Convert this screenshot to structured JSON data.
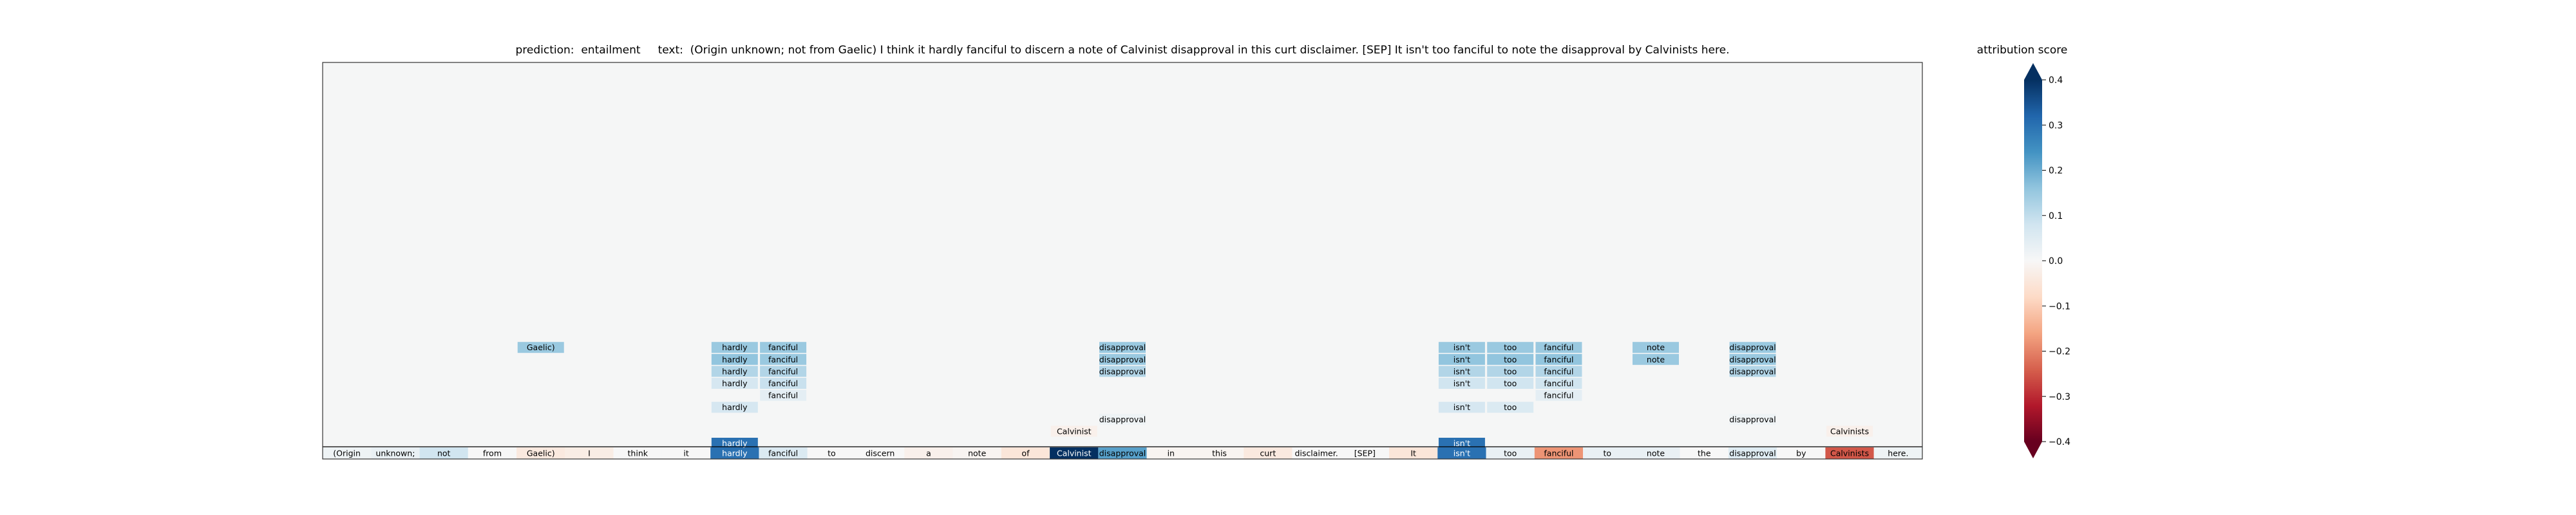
{
  "chart_data": {
    "type": "heatmap",
    "title": "prediction:  entailment     text:  (Origin unknown; not from Gaelic) I think it hardly fanciful to discern a note of Calvinist disapproval in this curt disclaimer. [SEP] It isn't too fanciful to note the disapproval by Calvinists here.",
    "colorbar": {
      "label": "attribution score",
      "range": [
        -0.4,
        0.4
      ],
      "ticks": [
        "0.4",
        "0.3",
        "0.2",
        "0.1",
        "0.0",
        "−0.1",
        "−0.2",
        "−0.3",
        "−0.4"
      ],
      "colormap": "RdBu",
      "extend": "both"
    },
    "tokens": [
      "(Origin",
      "unknown;",
      "not",
      "from",
      "Gaelic)",
      "I",
      "think",
      "it",
      "hardly",
      "fanciful",
      "to",
      "discern",
      "a",
      "note",
      "of",
      "Calvinist",
      "disapproval",
      "in",
      "this",
      "curt",
      "disclaimer.",
      "[SEP]",
      "It",
      "isn't",
      "too",
      "fanciful",
      "to",
      "note",
      "the",
      "disapproval",
      "by",
      "Calvinists",
      "here."
    ],
    "base_scores": [
      0.02,
      0.03,
      0.08,
      0.0,
      -0.04,
      -0.03,
      0.0,
      0.0,
      0.3,
      0.06,
      0.0,
      0.0,
      -0.02,
      -0.01,
      -0.05,
      0.4,
      0.22,
      -0.01,
      -0.01,
      -0.04,
      0.0,
      0.0,
      -0.05,
      0.3,
      0.03,
      -0.18,
      0.03,
      0.03,
      0.0,
      0.05,
      0.0,
      -0.25,
      0.02
    ],
    "layers": [
      {
        "row": 8,
        "cells": [
          {
            "token": 4,
            "score": 0.15
          },
          {
            "token": 8,
            "score": 0.15
          },
          {
            "token": 9,
            "score": 0.15
          },
          {
            "token": 16,
            "score": 0.15
          },
          {
            "token": 23,
            "score": 0.15
          },
          {
            "token": 24,
            "score": 0.15
          },
          {
            "token": 25,
            "score": 0.15
          },
          {
            "token": 27,
            "score": 0.15
          },
          {
            "token": 29,
            "score": 0.15
          }
        ]
      },
      {
        "row": 7,
        "cells": [
          {
            "token": 8,
            "score": 0.16
          },
          {
            "token": 9,
            "score": 0.15
          },
          {
            "token": 16,
            "score": 0.15
          },
          {
            "token": 23,
            "score": 0.16
          },
          {
            "token": 24,
            "score": 0.16
          },
          {
            "token": 25,
            "score": 0.16
          },
          {
            "token": 27,
            "score": 0.15
          },
          {
            "token": 29,
            "score": 0.15
          }
        ]
      },
      {
        "row": 6,
        "cells": [
          {
            "token": 8,
            "score": 0.12
          },
          {
            "token": 9,
            "score": 0.12
          },
          {
            "token": 16,
            "score": 0.12
          },
          {
            "token": 23,
            "score": 0.12
          },
          {
            "token": 24,
            "score": 0.12
          },
          {
            "token": 25,
            "score": 0.12
          },
          {
            "token": 29,
            "score": 0.12
          }
        ]
      },
      {
        "row": 5,
        "cells": [
          {
            "token": 8,
            "score": 0.07
          },
          {
            "token": 9,
            "score": 0.09
          },
          {
            "token": 23,
            "score": 0.08
          },
          {
            "token": 24,
            "score": 0.08
          },
          {
            "token": 25,
            "score": 0.08
          }
        ]
      },
      {
        "row": 4,
        "cells": [
          {
            "token": 9,
            "score": 0.04
          },
          {
            "token": 25,
            "score": 0.04
          }
        ]
      },
      {
        "row": 3,
        "cells": [
          {
            "token": 8,
            "score": 0.07
          },
          {
            "token": 23,
            "score": 0.07
          },
          {
            "token": 24,
            "score": 0.06
          }
        ]
      },
      {
        "row": 2,
        "cells": [
          {
            "token": 16,
            "score": 0.02
          },
          {
            "token": 29,
            "score": 0.02
          }
        ]
      },
      {
        "row": 1,
        "cells": [
          {
            "token": 15,
            "score": -0.02
          },
          {
            "token": 31,
            "score": -0.02
          }
        ]
      },
      {
        "row": 0,
        "cells": [
          {
            "token": 8,
            "score": 0.3
          },
          {
            "token": 23,
            "score": 0.3
          }
        ]
      }
    ]
  }
}
